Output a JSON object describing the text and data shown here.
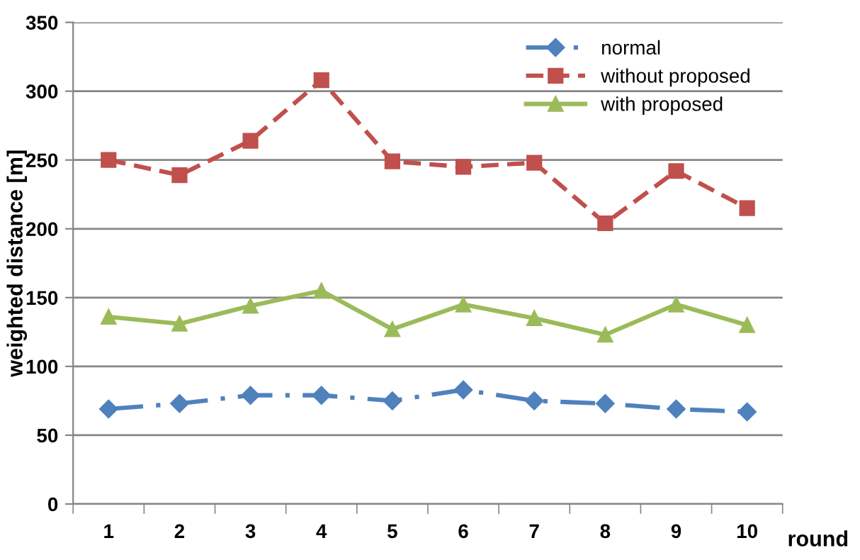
{
  "chart_data": {
    "type": "line",
    "xlabel": "round",
    "ylabel": "weighted distance [m]",
    "categories": [
      "1",
      "2",
      "3",
      "4",
      "5",
      "6",
      "7",
      "8",
      "9",
      "10"
    ],
    "series": [
      {
        "name": "normal",
        "color": "#4f81bd",
        "marker": "diamond",
        "line_style": "dashdot",
        "values": [
          69,
          73,
          79,
          79,
          75,
          83,
          75,
          73,
          69,
          67
        ]
      },
      {
        "name": "without proposed",
        "color": "#c0504d",
        "marker": "square",
        "line_style": "dashed",
        "values": [
          250,
          239,
          264,
          308,
          249,
          245,
          248,
          204,
          242,
          215
        ]
      },
      {
        "name": "with proposed",
        "color": "#9bbb59",
        "marker": "triangle",
        "line_style": "solid",
        "values": [
          136,
          131,
          144,
          155,
          127,
          145,
          135,
          123,
          145,
          130
        ]
      }
    ],
    "ylim": [
      0,
      350
    ],
    "yticks": [
      0,
      50,
      100,
      150,
      200,
      250,
      300,
      350
    ],
    "grid": "y",
    "legend": "top right"
  }
}
